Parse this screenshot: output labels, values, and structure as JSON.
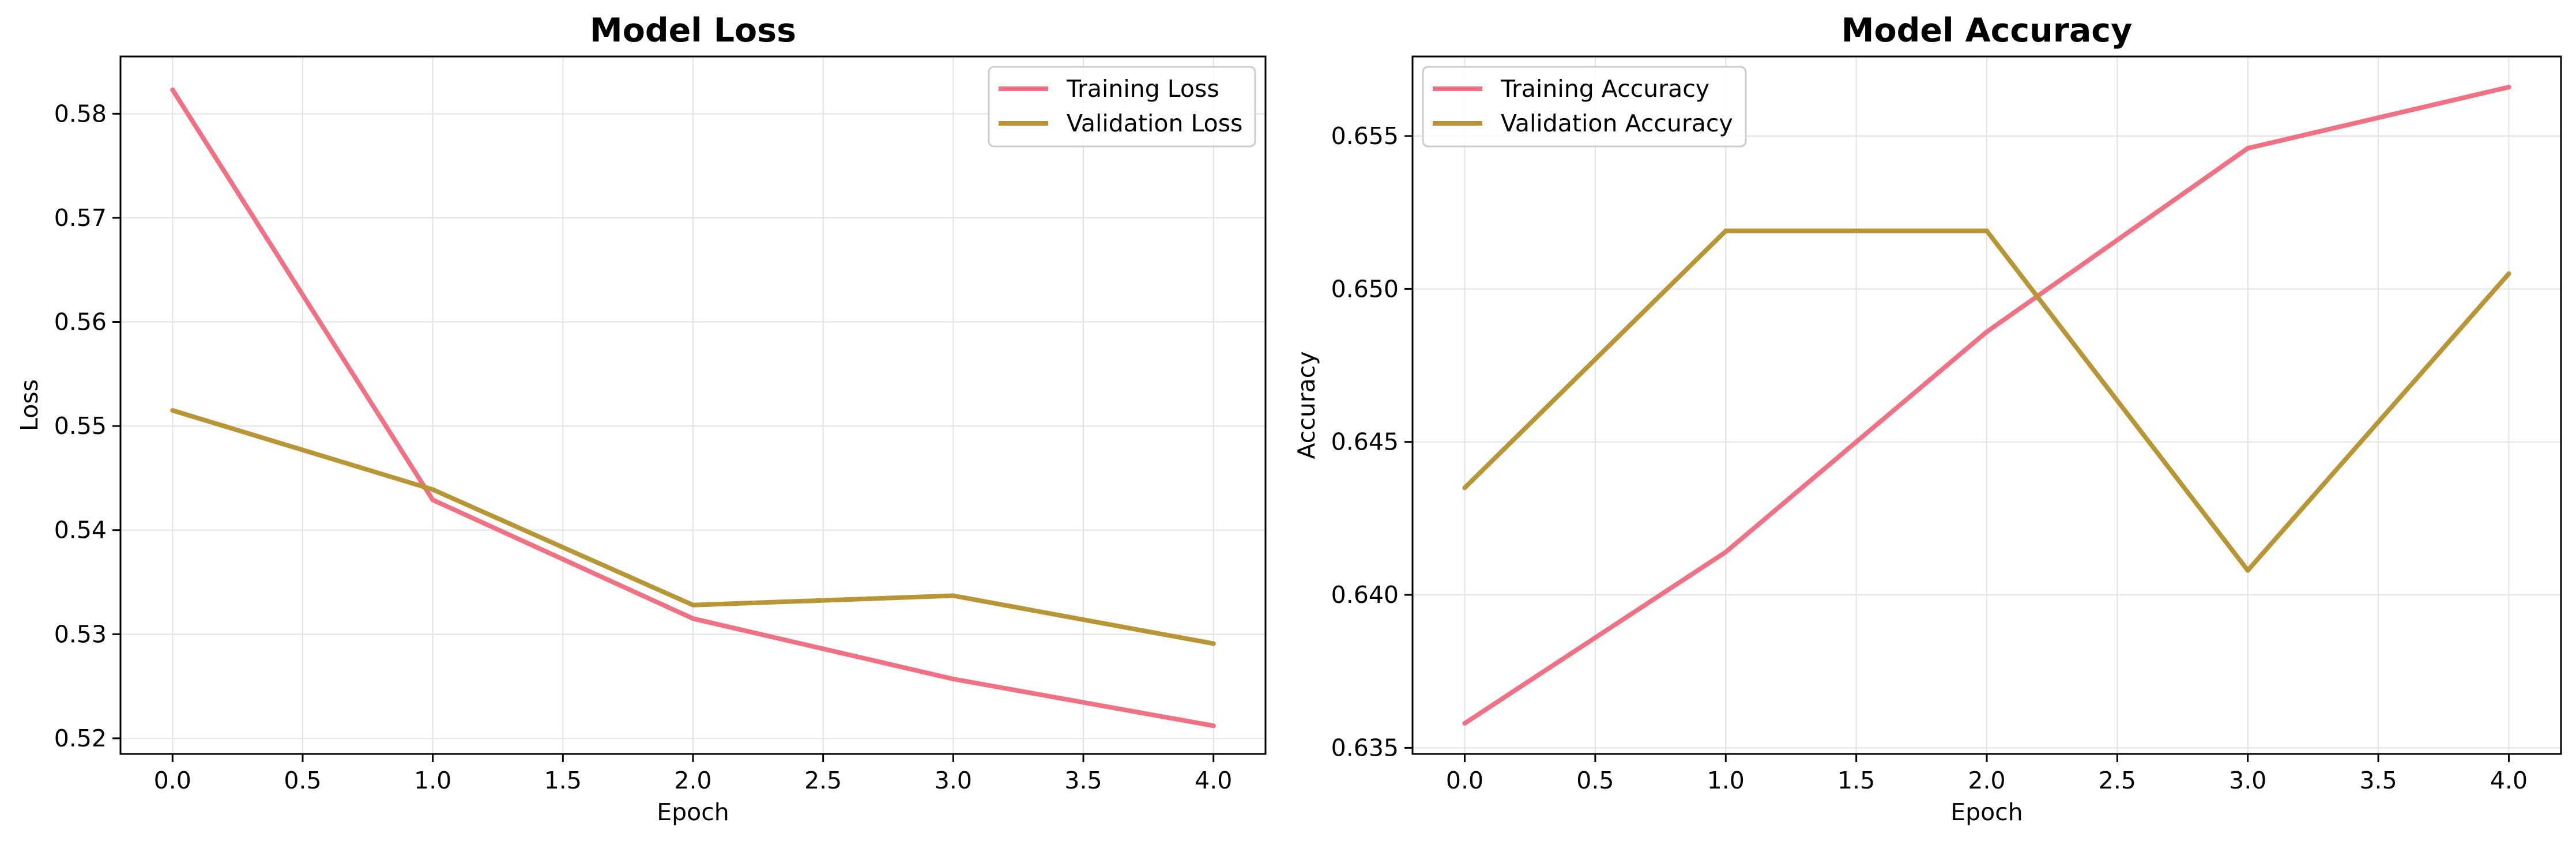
{
  "charts": {
    "loss": {
      "series_colors": [
        "#f07084",
        "#b89535"
      ]
    },
    "accuracy": {
      "series_colors": [
        "#f07084",
        "#b89535"
      ]
    }
  },
  "chart_data": [
    {
      "type": "line",
      "title": "Model Loss",
      "xlabel": "Epoch",
      "ylabel": "Loss",
      "x": [
        0,
        1,
        2,
        3,
        4
      ],
      "xlim": [
        -0.2,
        4.2
      ],
      "ylim": [
        0.5185,
        0.5855
      ],
      "xticks": [
        0.0,
        0.5,
        1.0,
        1.5,
        2.0,
        2.5,
        3.0,
        3.5,
        4.0
      ],
      "xtick_labels": [
        "0.0",
        "0.5",
        "1.0",
        "1.5",
        "2.0",
        "2.5",
        "3.0",
        "3.5",
        "4.0"
      ],
      "yticks": [
        0.52,
        0.53,
        0.54,
        0.55,
        0.56,
        0.57,
        0.58
      ],
      "ytick_labels": [
        "0.52",
        "0.53",
        "0.54",
        "0.55",
        "0.56",
        "0.57",
        "0.58"
      ],
      "grid": true,
      "legend_position": "top-right",
      "series": [
        {
          "name": "Training Loss",
          "values": [
            0.5823,
            0.5429,
            0.5315,
            0.5257,
            0.5212
          ]
        },
        {
          "name": "Validation Loss",
          "values": [
            0.5515,
            0.5439,
            0.5328,
            0.5337,
            0.5291
          ]
        }
      ]
    },
    {
      "type": "line",
      "title": "Model Accuracy",
      "xlabel": "Epoch",
      "ylabel": "Accuracy",
      "x": [
        0,
        1,
        2,
        3,
        4
      ],
      "xlim": [
        -0.2,
        4.2
      ],
      "ylim": [
        0.6348,
        0.6576
      ],
      "xticks": [
        0.0,
        0.5,
        1.0,
        1.5,
        2.0,
        2.5,
        3.0,
        3.5,
        4.0
      ],
      "xtick_labels": [
        "0.0",
        "0.5",
        "1.0",
        "1.5",
        "2.0",
        "2.5",
        "3.0",
        "3.5",
        "4.0"
      ],
      "yticks": [
        0.635,
        0.64,
        0.645,
        0.65,
        0.655
      ],
      "ytick_labels": [
        "0.635",
        "0.640",
        "0.645",
        "0.650",
        "0.655"
      ],
      "grid": true,
      "legend_position": "top-left",
      "series": [
        {
          "name": "Training Accuracy",
          "values": [
            0.6358,
            0.6414,
            0.6486,
            0.6546,
            0.6566
          ]
        },
        {
          "name": "Validation Accuracy",
          "values": [
            0.6435,
            0.6519,
            0.6519,
            0.6408,
            0.6505
          ]
        }
      ]
    }
  ]
}
